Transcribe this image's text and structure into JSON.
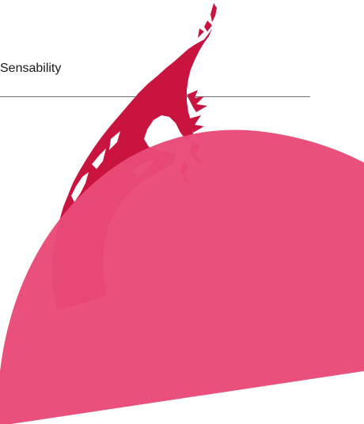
{
  "brand": {
    "name": "Sensability"
  },
  "colors": {
    "text": "#1a1a1a",
    "divider": "#6f6f6f",
    "brush_red": "#c8143f",
    "semicircle_pink": "#e84a78",
    "background": "#ffffff"
  },
  "graphics": {
    "brush_stroke": "crimson-brush-arc",
    "shape": "pink-half-disc"
  }
}
